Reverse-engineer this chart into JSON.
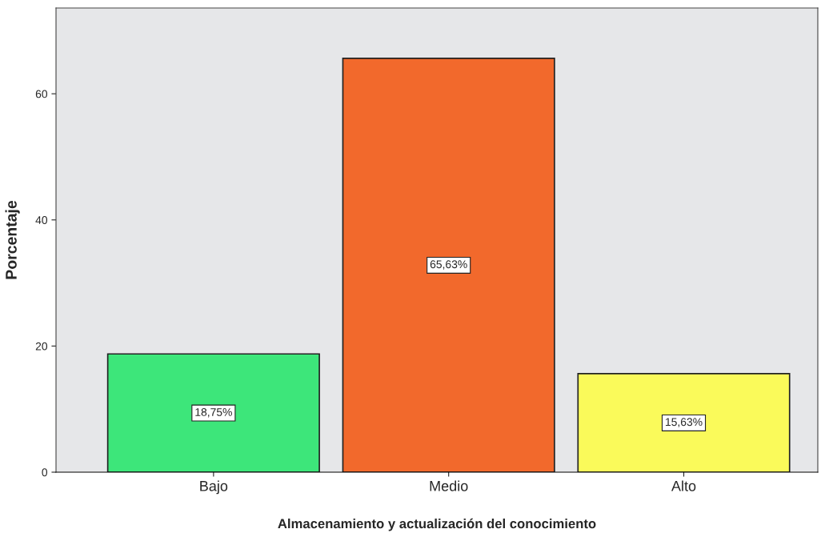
{
  "chart_data": {
    "type": "bar",
    "xlabel": "Almacenamiento y actualización del conocimiento",
    "ylabel": "Porcentaje",
    "categories": [
      "Bajo",
      "Medio",
      "Alto"
    ],
    "values": [
      18.75,
      65.63,
      15.63
    ],
    "colors": [
      "#3de67a",
      "#f2692c",
      "#fafa5a"
    ],
    "value_labels": [
      "18,75%",
      "65,63%",
      "15,63%"
    ],
    "ylim": [
      0,
      73.6
    ],
    "yticks": [
      0,
      20,
      40,
      60
    ],
    "grid": false
  }
}
